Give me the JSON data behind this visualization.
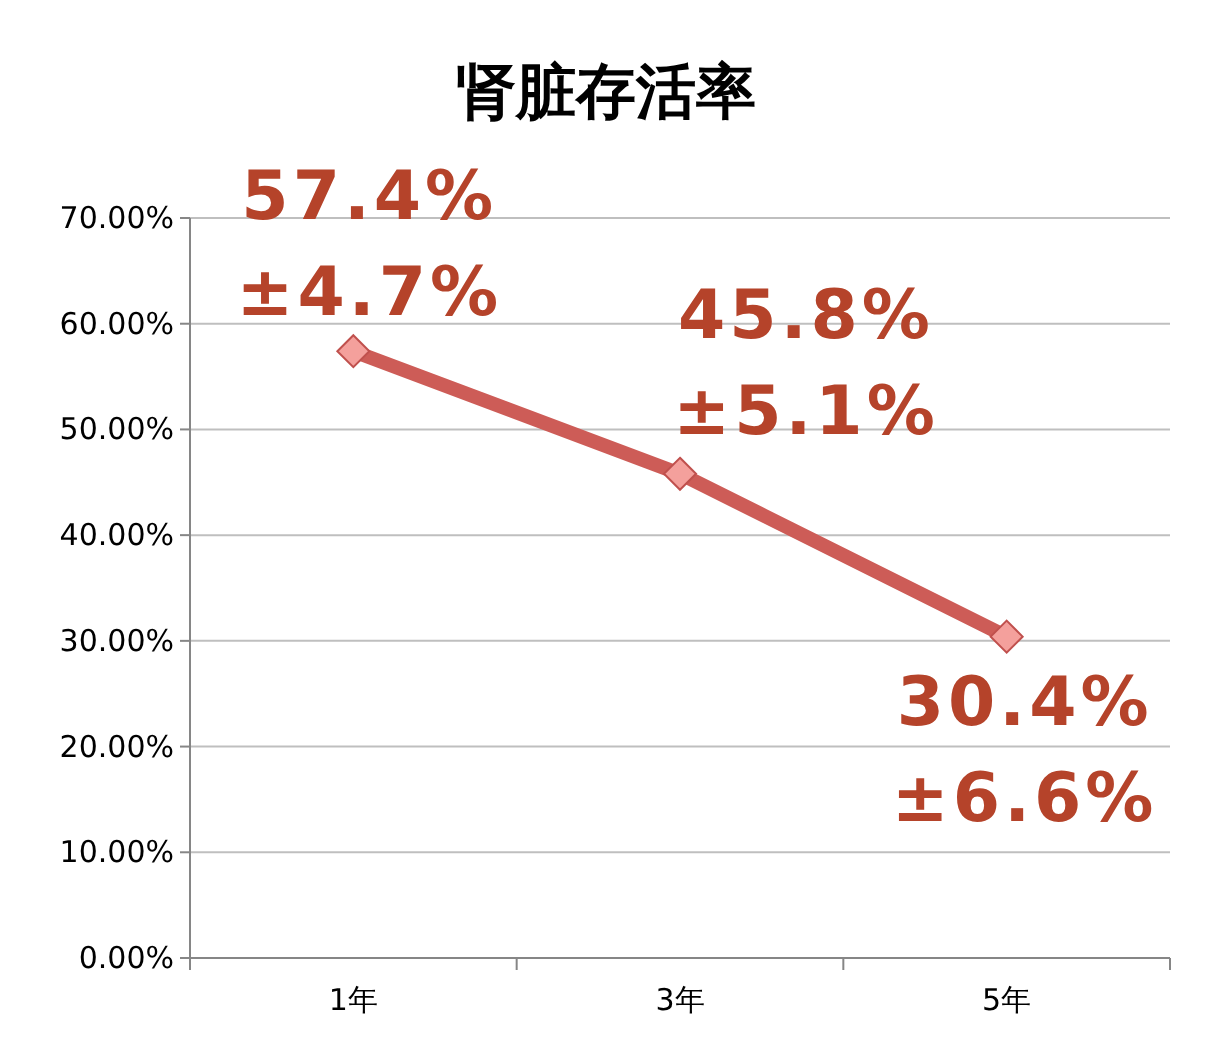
{
  "chart_data": {
    "type": "line",
    "title": "肾脏存活率",
    "categories": [
      "1年",
      "3年",
      "5年"
    ],
    "values": [
      57.4,
      45.8,
      30.4
    ],
    "value_labels": [
      "57.4%\n±4.7%",
      "45.8%\n±5.1%",
      "30.4%\n±6.6%"
    ],
    "color": "#cd5c57",
    "marker": "diamond",
    "ylim": [
      0,
      70
    ],
    "yticks": [
      {
        "value": 0,
        "label": "0.00%"
      },
      {
        "value": 10,
        "label": "10.00%"
      },
      {
        "value": 20,
        "label": "20.00%"
      },
      {
        "value": 30,
        "label": "30.00%"
      },
      {
        "value": 40,
        "label": "40.00%"
      },
      {
        "value": 50,
        "label": "50.00%"
      },
      {
        "value": 60,
        "label": "60.00%"
      },
      {
        "value": 70,
        "label": "70.00%"
      }
    ],
    "grid": "y"
  }
}
